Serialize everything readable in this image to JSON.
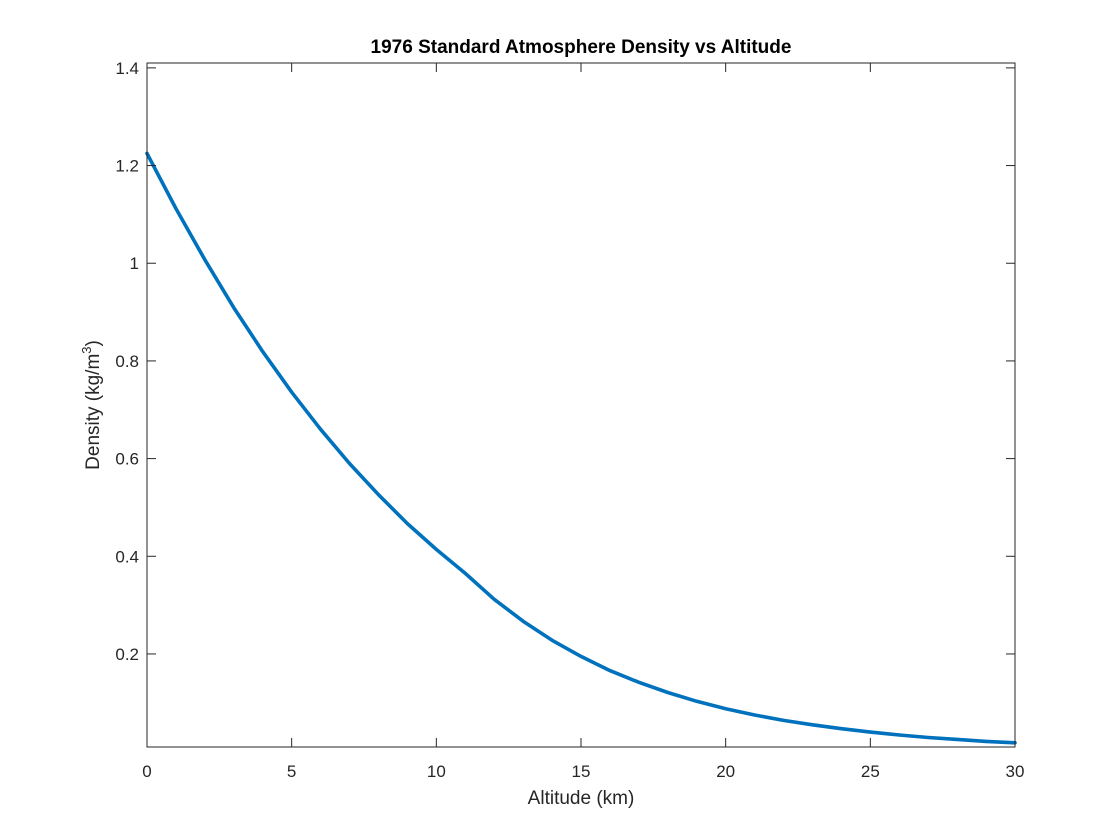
{
  "chart_data": {
    "type": "line",
    "title": "1976 Standard Atmosphere Density vs Altitude",
    "xlabel": "Altitude (km)",
    "ylabel": {
      "main": "Density (kg/m",
      "superscript": "3",
      "close": ")"
    },
    "xlim": [
      0,
      30
    ],
    "ylim": [
      0.0095,
      1.41
    ],
    "xticks": [
      0,
      5,
      10,
      15,
      20,
      25,
      30
    ],
    "xtick_labels": [
      "0",
      "5",
      "10",
      "15",
      "20",
      "25",
      "30"
    ],
    "yticks": [
      0.2,
      0.4,
      0.6,
      0.8,
      1.0,
      1.2,
      1.4
    ],
    "ytick_labels": [
      "0.2",
      "0.4",
      "0.6",
      "0.8",
      "1",
      "1.2",
      "1.4"
    ],
    "grid": false,
    "box": true,
    "series": [
      {
        "color": "#0072BD",
        "x": [
          0,
          1,
          2,
          3,
          4,
          5,
          6,
          7,
          8,
          9,
          10,
          11,
          12,
          13,
          14,
          15,
          16,
          17,
          18,
          19,
          20,
          21,
          22,
          23,
          24,
          25,
          26,
          27,
          28,
          29,
          30
        ],
        "y": [
          1.225,
          1.112,
          1.007,
          0.909,
          0.819,
          0.736,
          0.66,
          0.59,
          0.526,
          0.467,
          0.414,
          0.365,
          0.312,
          0.267,
          0.228,
          0.195,
          0.166,
          0.142,
          0.121,
          0.103,
          0.088,
          0.075,
          0.064,
          0.055,
          0.047,
          0.04,
          0.034,
          0.029,
          0.025,
          0.021,
          0.018
        ]
      }
    ]
  }
}
